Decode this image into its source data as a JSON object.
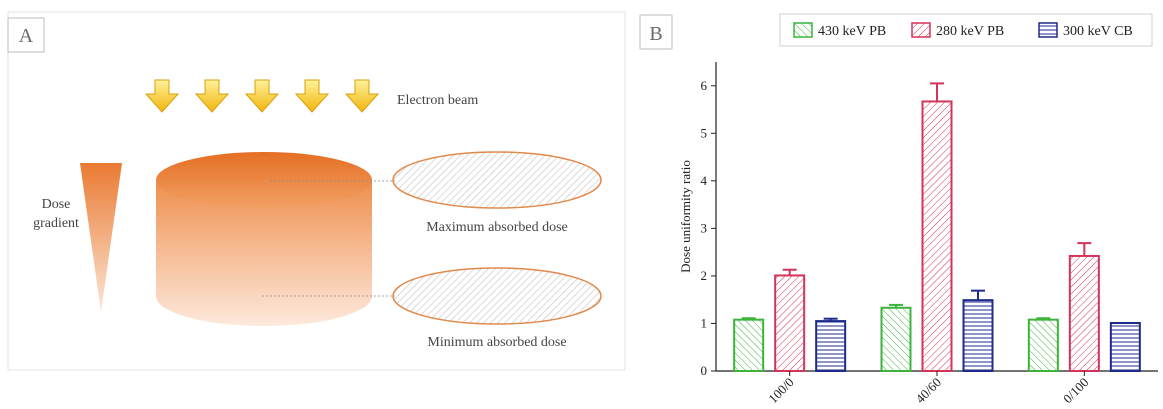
{
  "panel_a": {
    "letter": "A",
    "beam_label": "Electron beam",
    "dose_label_line1": "Dose",
    "dose_label_line2": "gradient",
    "max_label": "Maximum absorbed dose",
    "min_label": "Minimum absorbed dose",
    "colors": {
      "beam_arrow": "#f5c518",
      "cylinder_top": "#e8762d",
      "ellipse_border": "#e08a4a",
      "hatch": "#b8b8b8"
    }
  },
  "panel_b": {
    "letter": "B"
  },
  "chart_data": {
    "type": "bar",
    "categories": [
      "100/0",
      "40/60",
      "0/100"
    ],
    "ylabel": "Dose uniformity ratio",
    "xlabel": "",
    "ylim": [
      0,
      6.5
    ],
    "yticks": [
      0,
      1,
      2,
      3,
      4,
      5,
      6
    ],
    "legend_position": "top",
    "series": [
      {
        "name": "430 keV PB",
        "color": "#3cb43c",
        "pattern": "diagonal-up",
        "values": [
          1.08,
          1.33,
          1.08
        ],
        "errors": [
          0.03,
          0.06,
          0.03
        ]
      },
      {
        "name": "280 keV PB",
        "color": "#d4335a",
        "pattern": "diagonal-down",
        "values": [
          2.01,
          5.67,
          2.42
        ],
        "errors": [
          0.12,
          0.38,
          0.27
        ]
      },
      {
        "name": "300 keV CB",
        "color": "#1e2a8c",
        "pattern": "horizontal",
        "values": [
          1.05,
          1.49,
          1.01
        ],
        "errors": [
          0.05,
          0.2,
          0.0
        ]
      }
    ]
  }
}
